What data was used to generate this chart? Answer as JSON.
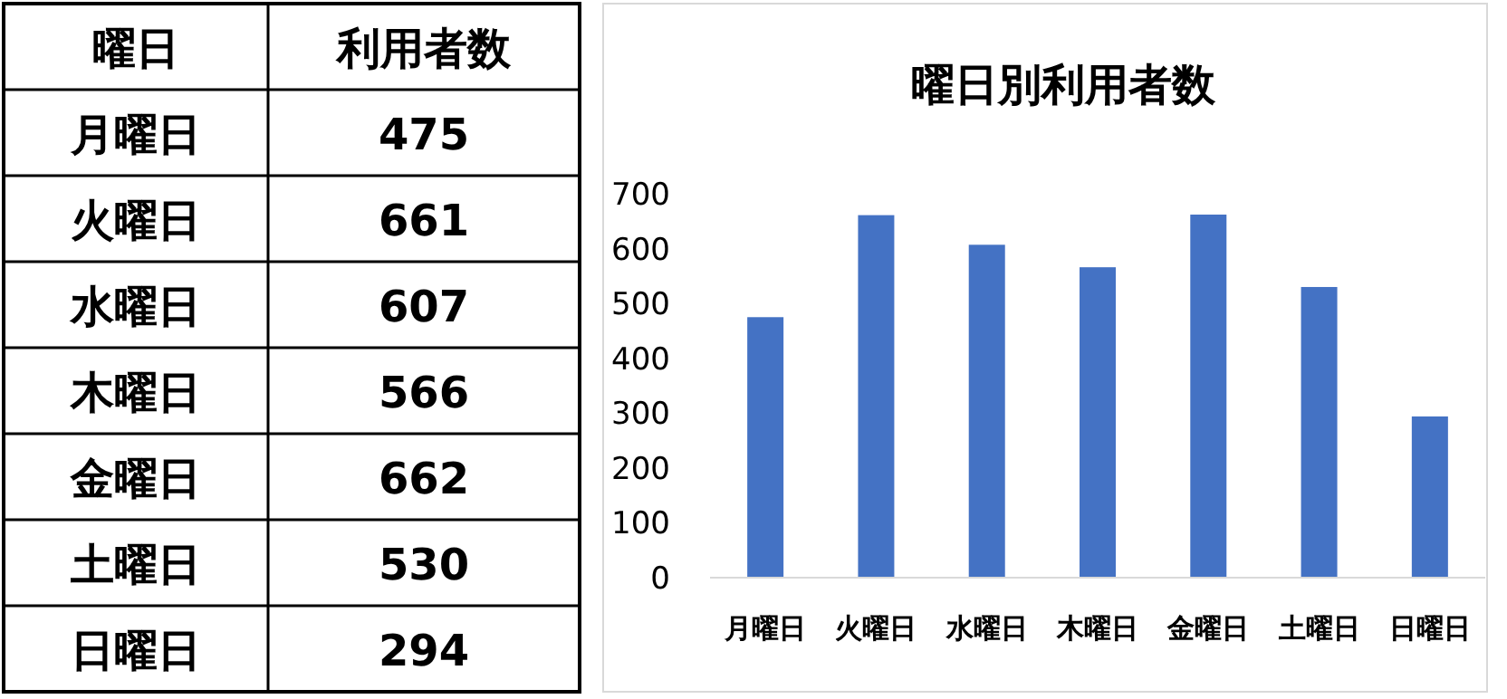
{
  "chart_data": [
    {
      "type": "other",
      "annotations": [
        "曜日",
        "利用者数",
        "月曜日",
        "475",
        "火曜日",
        "661",
        "水曜日",
        "607",
        "木曜日",
        "566",
        "金曜日",
        "662",
        "土曜日",
        "530",
        "日曜日",
        "294"
      ]
    },
    {
      "type": "bar",
      "title": "曜日別利用者数",
      "categories": [
        "月曜日",
        "火曜日",
        "水曜日",
        "木曜日",
        "金曜日",
        "土曜日",
        "日曜日"
      ],
      "values": [
        475,
        661,
        607,
        566,
        662,
        530,
        294
      ],
      "color": "#4472c4",
      "ylim": [
        0,
        700
      ],
      "yticks": [
        0,
        100,
        200,
        300,
        400,
        500,
        600,
        700
      ]
    }
  ]
}
